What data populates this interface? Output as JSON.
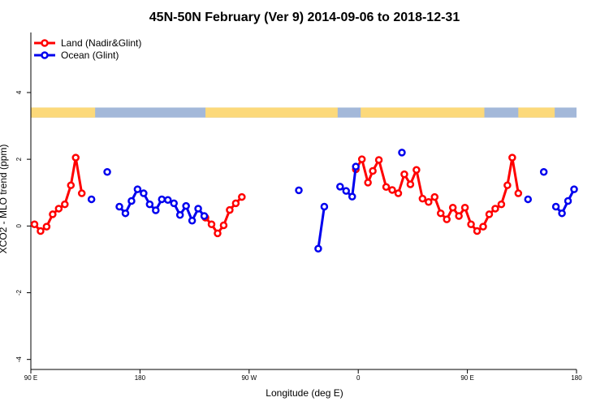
{
  "chart_data": {
    "type": "line",
    "title": "45N-50N February (Ver 9)   2014-09-06 to 2018-12-31",
    "xlabel": "Longitude (deg E)",
    "ylabel": "XCO2 - MLO trend (ppm)",
    "xlim": [
      90,
      540
    ],
    "ylim": [
      -4.3,
      5.8
    ],
    "x_ticks": [
      {
        "value": 90,
        "label": "90 E"
      },
      {
        "value": 180,
        "label": "180"
      },
      {
        "value": 270,
        "label": "90 W"
      },
      {
        "value": 360,
        "label": "0"
      },
      {
        "value": 450,
        "label": "90 E"
      },
      {
        "value": 540,
        "label": "180"
      }
    ],
    "y_ticks": [
      {
        "value": -4,
        "label": "-4"
      },
      {
        "value": -2,
        "label": "-2"
      },
      {
        "value": 0,
        "label": "0"
      },
      {
        "value": 2,
        "label": "2"
      },
      {
        "value": 4,
        "label": "4"
      }
    ],
    "legend_position": "top-left",
    "land_ocean_strip": {
      "y_range": [
        3.25,
        3.55
      ],
      "land_color": "#fcd97a",
      "ocean_color": "#a3b8d9",
      "land_segments": [
        [
          90,
          143
        ],
        [
          234,
          343
        ],
        [
          362,
          464
        ],
        [
          492,
          522
        ]
      ]
    },
    "series": [
      {
        "name": "Land (Nadir&Glint)",
        "color": "#ff0000",
        "segments": [
          [
            [
              93,
              0.05
            ],
            [
              98,
              -0.15
            ],
            [
              103,
              -0.02
            ],
            [
              108,
              0.35
            ],
            [
              113,
              0.52
            ],
            [
              118,
              0.65
            ],
            [
              123,
              1.22
            ],
            [
              127,
              2.05
            ],
            [
              132,
              0.98
            ]
          ],
          [
            [
              234,
              0.25
            ],
            [
              239,
              0.05
            ],
            [
              244,
              -0.22
            ],
            [
              249,
              0.02
            ],
            [
              254,
              0.48
            ],
            [
              259,
              0.68
            ],
            [
              264,
              0.87
            ]
          ],
          [
            [
              358,
              1.7
            ],
            [
              363,
              2.0
            ],
            [
              368,
              1.3
            ],
            [
              372,
              1.65
            ],
            [
              377,
              1.98
            ],
            [
              383,
              1.17
            ],
            [
              388,
              1.08
            ],
            [
              393,
              0.98
            ],
            [
              398,
              1.55
            ],
            [
              403,
              1.25
            ],
            [
              408,
              1.68
            ],
            [
              413,
              0.82
            ],
            [
              418,
              0.72
            ],
            [
              423,
              0.87
            ],
            [
              428,
              0.38
            ],
            [
              433,
              0.2
            ],
            [
              438,
              0.55
            ],
            [
              443,
              0.3
            ],
            [
              448,
              0.55
            ],
            [
              453,
              0.05
            ],
            [
              458,
              -0.15
            ],
            [
              463,
              -0.02
            ],
            [
              468,
              0.35
            ],
            [
              473,
              0.52
            ],
            [
              478,
              0.65
            ],
            [
              483,
              1.22
            ],
            [
              487,
              2.05
            ],
            [
              492,
              0.98
            ]
          ]
        ]
      },
      {
        "name": "Ocean (Glint)",
        "color": "#0000ee",
        "segments": [
          [
            [
              140,
              0.8
            ]
          ],
          [
            [
              153,
              1.62
            ]
          ],
          [
            [
              163,
              0.58
            ],
            [
              168,
              0.38
            ],
            [
              173,
              0.75
            ],
            [
              178,
              1.1
            ],
            [
              183,
              0.98
            ],
            [
              188,
              0.65
            ],
            [
              193,
              0.47
            ],
            [
              198,
              0.8
            ],
            [
              203,
              0.78
            ],
            [
              208,
              0.68
            ],
            [
              213,
              0.33
            ],
            [
              218,
              0.6
            ],
            [
              223,
              0.16
            ],
            [
              228,
              0.52
            ],
            [
              233,
              0.3
            ]
          ],
          [
            [
              311,
              1.07
            ]
          ],
          [
            [
              327,
              -0.68
            ],
            [
              332,
              0.58
            ]
          ],
          [
            [
              345,
              1.18
            ],
            [
              350,
              1.05
            ],
            [
              355,
              0.88
            ],
            [
              358,
              1.78
            ]
          ],
          [
            [
              396,
              2.2
            ]
          ],
          [
            [
              500,
              0.8
            ]
          ],
          [
            [
              513,
              1.62
            ]
          ],
          [
            [
              523,
              0.58
            ],
            [
              528,
              0.38
            ],
            [
              533,
              0.75
            ],
            [
              538,
              1.1
            ]
          ]
        ]
      }
    ]
  }
}
